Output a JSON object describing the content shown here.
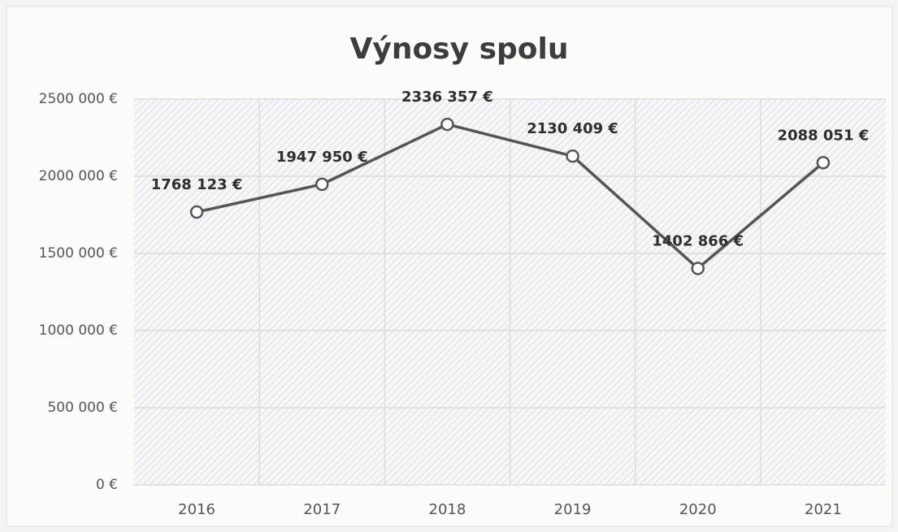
{
  "chart_data": {
    "type": "line",
    "title": "Výnosy spolu",
    "categories": [
      "2016",
      "2017",
      "2018",
      "2019",
      "2020",
      "2021"
    ],
    "values": [
      1768123,
      1947950,
      2336357,
      2130409,
      1402866,
      2088051
    ],
    "value_labels": [
      "1768 123 €",
      "1947 950 €",
      "2336 357 €",
      "2130 409 €",
      "1402 866 €",
      "2088 051 €"
    ],
    "color": "#555555",
    "ylim": [
      0,
      2500000
    ],
    "yticks": [
      {
        "value": 0,
        "label": "0 €"
      },
      {
        "value": 500000,
        "label": "500 000 €"
      },
      {
        "value": 1000000,
        "label": "1000 000 €"
      },
      {
        "value": 1500000,
        "label": "1500 000 €"
      },
      {
        "value": 2000000,
        "label": "2000 000 €"
      },
      {
        "value": 2500000,
        "label": "2500 000 €"
      }
    ],
    "grid": true
  }
}
